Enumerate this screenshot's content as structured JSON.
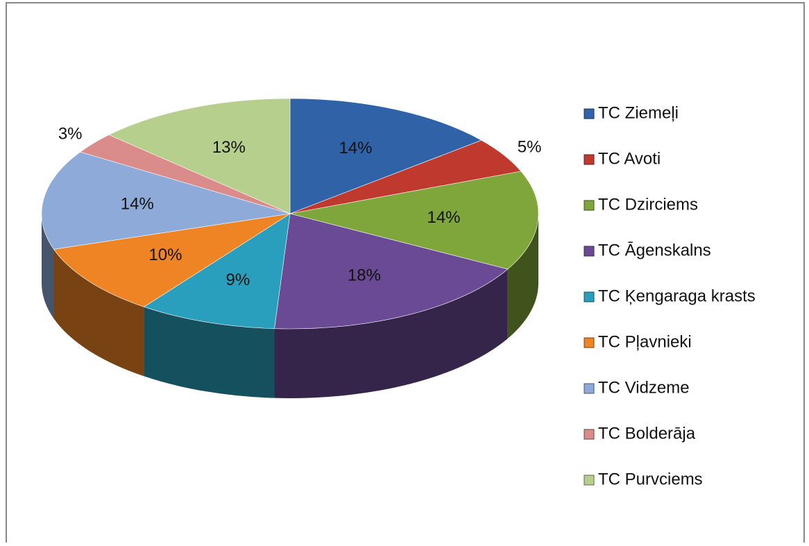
{
  "chart_data": {
    "type": "pie",
    "categories": [
      "TC Ziemeļi",
      "TC Avoti",
      "TC Dzirciems",
      "TC Āgenskalns",
      "TC Ķengaraga krasts",
      "TC Pļavnieki",
      "TC Vidzeme",
      "TC Bolderāja",
      "TC Purvciems"
    ],
    "values": [
      14,
      5,
      14,
      18,
      9,
      10,
      14,
      3,
      13
    ],
    "value_labels": [
      "14%",
      "5%",
      "14%",
      "18%",
      "9%",
      "10%",
      "14%",
      "3%",
      "13%"
    ],
    "colors": [
      "#2f62a6",
      "#c0392f",
      "#7fa63a",
      "#6a4a94",
      "#2a9fbd",
      "#ef8424",
      "#8eaad8",
      "#d98c8a",
      "#b7cf8c"
    ],
    "legend": "right"
  }
}
